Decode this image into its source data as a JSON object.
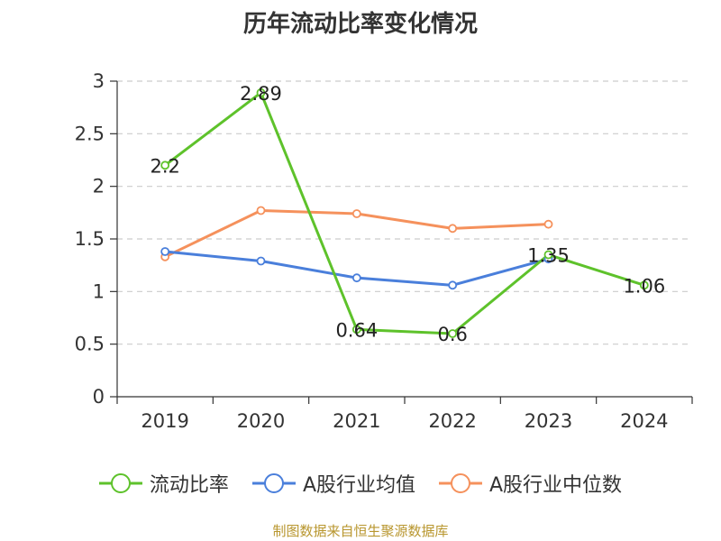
{
  "title": "历年流动比率变化情况",
  "source": "制图数据来自恒生聚源数据库",
  "chart_data": {
    "type": "line",
    "categories": [
      "2019",
      "2020",
      "2021",
      "2022",
      "2023",
      "2024"
    ],
    "ylim": [
      0,
      3
    ],
    "yticks": [
      "0",
      "0.5",
      "1",
      "1.5",
      "2",
      "2.5",
      "3"
    ],
    "grid": true,
    "legend_position": "bottom",
    "series": [
      {
        "name": "流动比率",
        "color": "#5ec22b",
        "values": [
          2.2,
          2.89,
          0.64,
          0.6,
          1.35,
          1.06
        ],
        "labels": [
          "2.2",
          "2.89",
          "0.64",
          "0.6",
          "1.35",
          "1.06"
        ]
      },
      {
        "name": "A股行业均值",
        "color": "#4a7fdb",
        "values": [
          1.38,
          1.29,
          1.13,
          1.06,
          1.31,
          null
        ]
      },
      {
        "name": "A股行业中位数",
        "color": "#f5915c",
        "values": [
          1.33,
          1.77,
          1.74,
          1.6,
          1.64,
          null
        ]
      }
    ]
  }
}
